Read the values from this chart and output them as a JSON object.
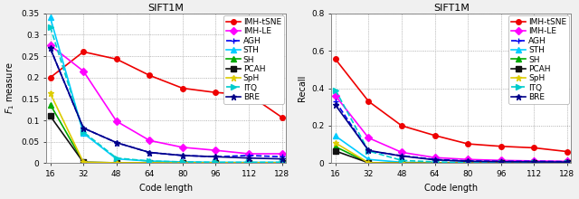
{
  "title": "SIFT1M",
  "code_lengths": [
    16,
    32,
    48,
    64,
    80,
    96,
    112,
    128
  ],
  "f1_data": {
    "IMH-tSNE": [
      0.2,
      0.26,
      0.243,
      0.205,
      0.175,
      0.165,
      0.16,
      0.107
    ],
    "IMH-LE": [
      0.275,
      0.215,
      0.098,
      0.053,
      0.037,
      0.03,
      0.022,
      0.022
    ],
    "AGH": [
      0.268,
      0.082,
      0.048,
      0.025,
      0.018,
      0.015,
      0.018,
      0.015
    ],
    "STH": [
      0.34,
      0.07,
      0.01,
      0.005,
      0.003,
      0.002,
      0.002,
      0.002
    ],
    "SH": [
      0.137,
      0.002,
      0.001,
      0.001,
      0.001,
      0.001,
      0.001,
      0.001
    ],
    "PCAH": [
      0.11,
      0.002,
      0.001,
      0.001,
      0.001,
      0.001,
      0.001,
      0.001
    ],
    "SpH": [
      0.163,
      0.002,
      0.001,
      0.001,
      0.001,
      0.001,
      0.001,
      0.001
    ],
    "ITQ": [
      0.318,
      0.073,
      0.012,
      0.005,
      0.003,
      0.002,
      0.002,
      0.002
    ],
    "BRE": [
      0.268,
      0.082,
      0.048,
      0.025,
      0.018,
      0.015,
      0.012,
      0.01
    ]
  },
  "recall_data": {
    "IMH-tSNE": [
      0.555,
      0.33,
      0.2,
      0.148,
      0.103,
      0.09,
      0.082,
      0.062
    ],
    "IMH-LE": [
      0.36,
      0.135,
      0.058,
      0.03,
      0.02,
      0.015,
      0.012,
      0.01
    ],
    "AGH": [
      0.33,
      0.065,
      0.04,
      0.02,
      0.012,
      0.01,
      0.01,
      0.008
    ],
    "STH": [
      0.145,
      0.02,
      0.005,
      0.003,
      0.002,
      0.002,
      0.002,
      0.002
    ],
    "SH": [
      0.088,
      0.002,
      0.001,
      0.001,
      0.001,
      0.001,
      0.001,
      0.001
    ],
    "PCAH": [
      0.065,
      0.002,
      0.001,
      0.001,
      0.001,
      0.001,
      0.001,
      0.001
    ],
    "SpH": [
      0.108,
      0.002,
      0.001,
      0.001,
      0.001,
      0.001,
      0.001,
      0.001
    ],
    "ITQ": [
      0.39,
      0.065,
      0.015,
      0.007,
      0.004,
      0.003,
      0.003,
      0.003
    ],
    "BRE": [
      0.31,
      0.068,
      0.038,
      0.018,
      0.01,
      0.008,
      0.007,
      0.006
    ]
  },
  "series_styles": {
    "IMH-tSNE": {
      "color": "#ee0000",
      "marker": "o",
      "linestyle": "-",
      "linewidth": 1.2,
      "markersize": 4
    },
    "IMH-LE": {
      "color": "#ff00ff",
      "marker": "D",
      "linestyle": "-",
      "linewidth": 1.2,
      "markersize": 4
    },
    "AGH": {
      "color": "#0000ee",
      "marker": "+",
      "linestyle": "--",
      "linewidth": 1.2,
      "markersize": 5
    },
    "STH": {
      "color": "#00ccff",
      "marker": "^",
      "linestyle": "-",
      "linewidth": 1.2,
      "markersize": 4
    },
    "SH": {
      "color": "#00aa00",
      "marker": "^",
      "linestyle": "-",
      "linewidth": 1.2,
      "markersize": 4
    },
    "PCAH": {
      "color": "#111111",
      "marker": "s",
      "linestyle": "-",
      "linewidth": 1.2,
      "markersize": 4
    },
    "SpH": {
      "color": "#ddcc00",
      "marker": "*",
      "linestyle": "-",
      "linewidth": 1.2,
      "markersize": 5
    },
    "ITQ": {
      "color": "#00cccc",
      "marker": ">",
      "linestyle": "--",
      "linewidth": 1.2,
      "markersize": 4
    },
    "BRE": {
      "color": "#000088",
      "marker": "*",
      "linestyle": "-",
      "linewidth": 1.2,
      "markersize": 5
    }
  },
  "f1_ylim": [
    0,
    0.35
  ],
  "recall_ylim": [
    0,
    0.8
  ],
  "f1_yticks": [
    0.0,
    0.05,
    0.1,
    0.15,
    0.2,
    0.25,
    0.3,
    0.35
  ],
  "recall_yticks": [
    0.0,
    0.2,
    0.4,
    0.6,
    0.8
  ],
  "xticks": [
    16,
    32,
    48,
    64,
    80,
    96,
    112,
    128
  ],
  "xlabel": "Code length",
  "f1_ylabel": "F_1 measure",
  "recall_ylabel": "Recall",
  "background": "#f0f0f0",
  "plot_bg": "#ffffff",
  "grid_color": "#999999",
  "legend_order": [
    "IMH-tSNE",
    "IMH-LE",
    "AGH",
    "STH",
    "SH",
    "PCAH",
    "SpH",
    "ITQ",
    "BRE"
  ],
  "fontsize_title": 8,
  "fontsize_label": 7,
  "fontsize_tick": 6.5,
  "fontsize_legend": 6.5
}
